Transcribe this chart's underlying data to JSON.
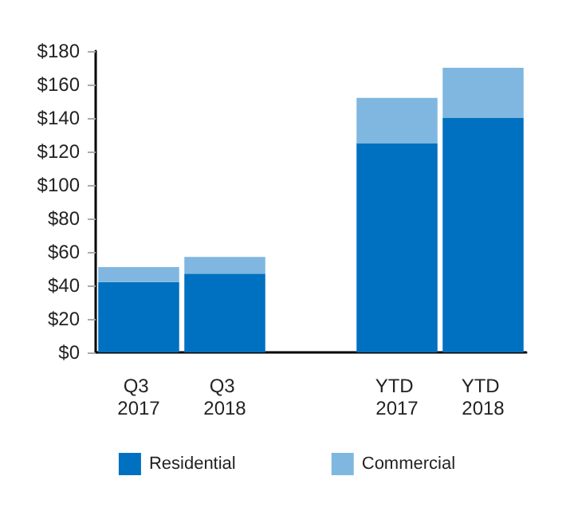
{
  "chart_data": {
    "type": "bar",
    "stacked": true,
    "categories": [
      "Q3 2017",
      "Q3 2018",
      null,
      "YTD 2017",
      "YTD 2018"
    ],
    "series": [
      {
        "name": "Residential",
        "color": "#0070c0",
        "values": [
          42,
          47,
          null,
          125,
          140
        ]
      },
      {
        "name": "Commercial",
        "color": "#7fb7e0",
        "values": [
          9,
          10,
          null,
          27,
          30
        ]
      }
    ],
    "ylim": [
      0,
      180
    ],
    "yticks": [
      {
        "value": 0,
        "label": "$0"
      },
      {
        "value": 20,
        "label": "$20"
      },
      {
        "value": 40,
        "label": "$40"
      },
      {
        "value": 60,
        "label": "$60"
      },
      {
        "value": 80,
        "label": "$80"
      },
      {
        "value": 100,
        "label": "$100"
      },
      {
        "value": 120,
        "label": "$120"
      },
      {
        "value": 140,
        "label": "$140"
      },
      {
        "value": 160,
        "label": "$160"
      },
      {
        "value": 180,
        "label": "$180"
      }
    ],
    "grid": false,
    "legend": "bottom"
  }
}
